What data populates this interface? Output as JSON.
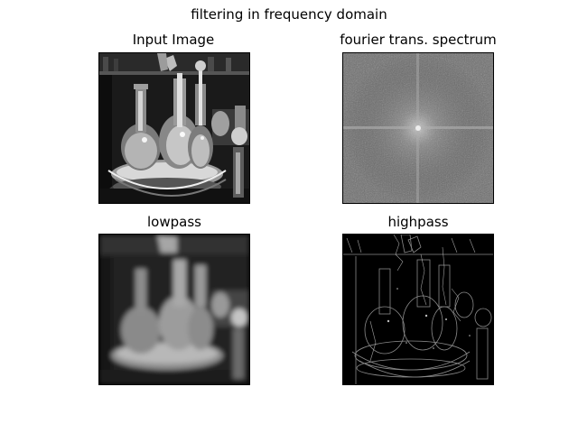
{
  "figure": {
    "suptitle": "filtering in frequency domain"
  },
  "panels": [
    {
      "title": "Input Image"
    },
    {
      "title": "fourier trans. spectrum"
    },
    {
      "title": "lowpass"
    },
    {
      "title": "highpass"
    }
  ],
  "colors": {
    "background": "#ffffff",
    "spectrum_base": "#6e6e6e"
  }
}
